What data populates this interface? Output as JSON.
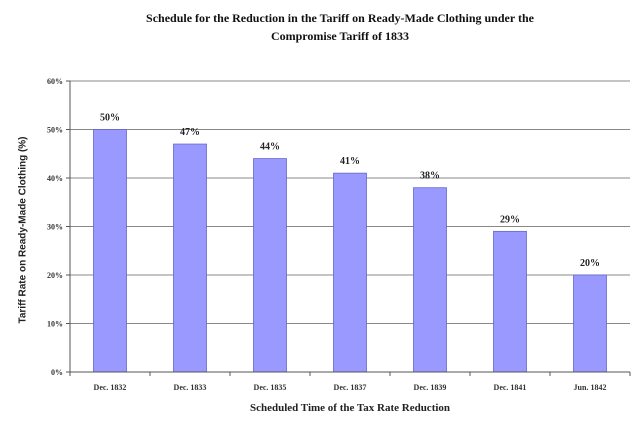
{
  "chart_data": {
    "type": "bar",
    "title": "Schedule for the Reduction in the Tariff on Ready-Made Clothing under the Compromise Tariff of 1833",
    "title_lines": [
      "Schedule for the Reduction in the Tariff on Ready-Made Clothing under the",
      "Compromise Tariff of 1833"
    ],
    "xlabel": "Scheduled Time of the Tax Rate Reduction",
    "ylabel": "Tariff Rate on Ready-Made Clothing (%)",
    "categories": [
      "Dec. 1832",
      "Dec. 1833",
      "Dec. 1835",
      "Dec. 1837",
      "Dec. 1839",
      "Dec. 1841",
      "Jun. 1842"
    ],
    "values": [
      50,
      47,
      44,
      41,
      38,
      29,
      20
    ],
    "data_labels": [
      "50%",
      "47%",
      "44%",
      "41%",
      "38%",
      "29%",
      "20%"
    ],
    "ylim": [
      0,
      60
    ],
    "yticks": [
      "0%",
      "10%",
      "20%",
      "30%",
      "40%",
      "50%",
      "60%"
    ],
    "grid": true,
    "legend": "none",
    "bar_color": "#9999ff"
  }
}
